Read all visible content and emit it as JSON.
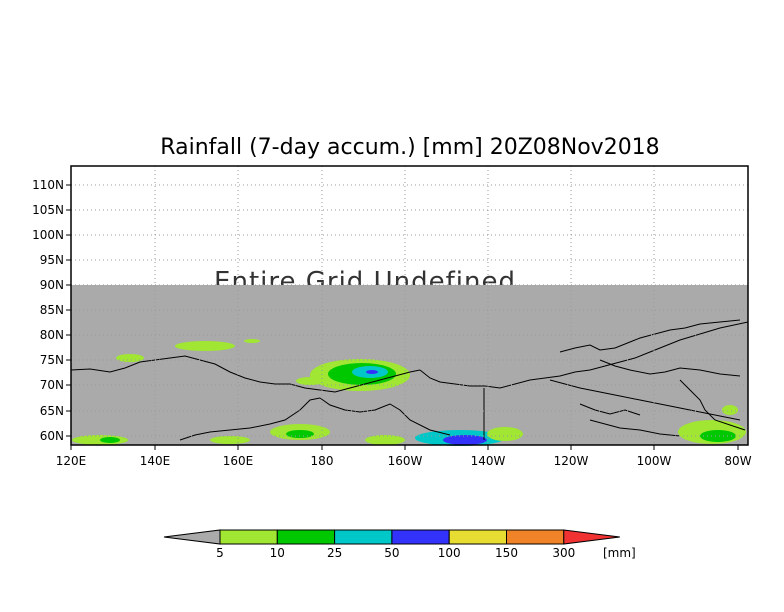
{
  "map": {
    "title": "Rainfall (7-day accum.) [mm] 20Z08Nov2018",
    "overlay_text": "Entire Grid Undefined",
    "lon_labels": [
      "120E",
      "140E",
      "160E",
      "180",
      "160W",
      "140W",
      "120W",
      "100W",
      "80W"
    ],
    "lat_labels": [
      "60N",
      "65N",
      "70N",
      "75N",
      "80N",
      "85N",
      "90N",
      "95N",
      "100N",
      "105N",
      "110N"
    ],
    "undefined_color": "#aaaaaa",
    "colorbar": {
      "unit": "[mm]",
      "levels": [
        "5",
        "10",
        "25",
        "50",
        "100",
        "150",
        "300"
      ],
      "colors": [
        "#a0e632",
        "#00c800",
        "#00c8c8",
        "#3232fa",
        "#e6dc32",
        "#f08228",
        "#f03232"
      ],
      "under_color": "#aaaaaa"
    }
  }
}
